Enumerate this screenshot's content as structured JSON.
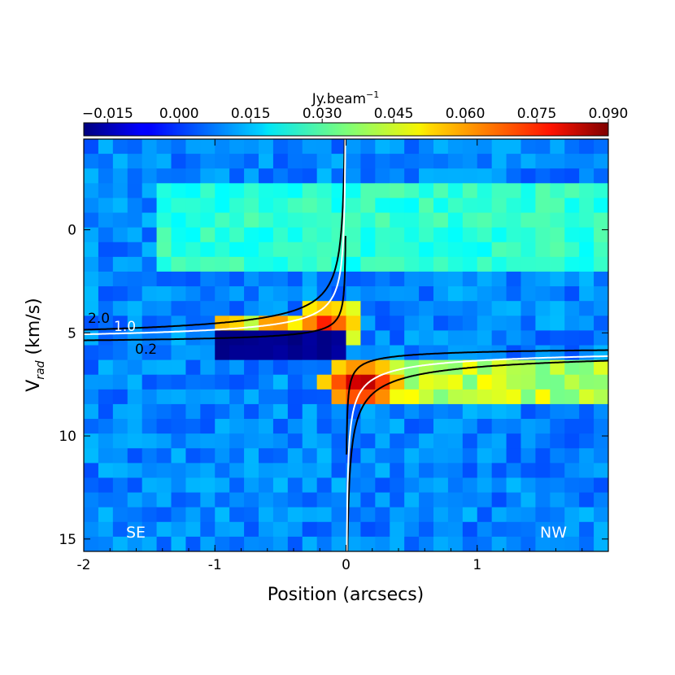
{
  "chart_data": {
    "type": "heatmap",
    "title": "",
    "xlabel": "Position (arcsecs)",
    "ylabel_main": "V",
    "ylabel_sub": "rad",
    "ylabel_unit": " (km/s)",
    "xlim": [
      -2.0,
      2.0
    ],
    "ylim_top_to_bottom": [
      -4.4,
      15.6
    ],
    "x_ticks": [
      -2,
      -1,
      0,
      1
    ],
    "x_tick_labels": [
      "-2",
      "-1",
      "0",
      "1"
    ],
    "y_ticks": [
      0,
      5,
      10,
      15
    ],
    "y_tick_labels": [
      "0",
      "5",
      "10",
      "15"
    ],
    "colorbar": {
      "label": "Jy.beam",
      "label_exponent": "−1",
      "range": [
        -0.02,
        0.09
      ],
      "ticks": [
        -0.015,
        0.0,
        0.015,
        0.03,
        0.045,
        0.06,
        0.075,
        0.09
      ],
      "tick_labels": [
        "−0.015",
        "0.000",
        "0.015",
        "0.030",
        "0.045",
        "0.060",
        "0.075",
        "0.090"
      ],
      "colormap": "jet"
    },
    "grid": {
      "nx": 36,
      "ny": 28,
      "note_cells": "cell values approximated from the image (Jy/beam)",
      "background_level": 0.008,
      "features": [
        {
          "kind": "band",
          "v_range": [
            -2.5,
            2.0
          ],
          "x_range": [
            -1.4,
            2.0
          ],
          "level": 0.028
        },
        {
          "kind": "band",
          "v_range": [
            6.3,
            8.2
          ],
          "x_range": [
            0.0,
            2.0
          ],
          "level": 0.045
        },
        {
          "kind": "peak",
          "x": -0.15,
          "v": 4.5,
          "level": 0.075
        },
        {
          "kind": "peak",
          "x": 0.12,
          "v": 7.5,
          "level": 0.09
        },
        {
          "kind": "absorption",
          "v_range": [
            5.0,
            6.2
          ],
          "x_range": [
            -1.0,
            0.0
          ],
          "level": -0.02
        },
        {
          "kind": "band",
          "v_range": [
            4.0,
            5.0
          ],
          "x_range": [
            -1.0,
            0.0
          ],
          "level": 0.055
        }
      ]
    },
    "curves": [
      {
        "name": "2.0",
        "color": "#000000",
        "mass_scale": 2.0
      },
      {
        "name": "1.0",
        "color": "#ffffff",
        "mass_scale": 1.0
      },
      {
        "name": "0.2",
        "color": "#000000",
        "mass_scale": 0.2
      }
    ],
    "systemic_velocity": 5.6,
    "annotations": [
      {
        "text": "SE",
        "color": "#ffffff",
        "pos": "bottom-left"
      },
      {
        "text": "NW",
        "color": "#ffffff",
        "pos": "bottom-right"
      }
    ]
  }
}
